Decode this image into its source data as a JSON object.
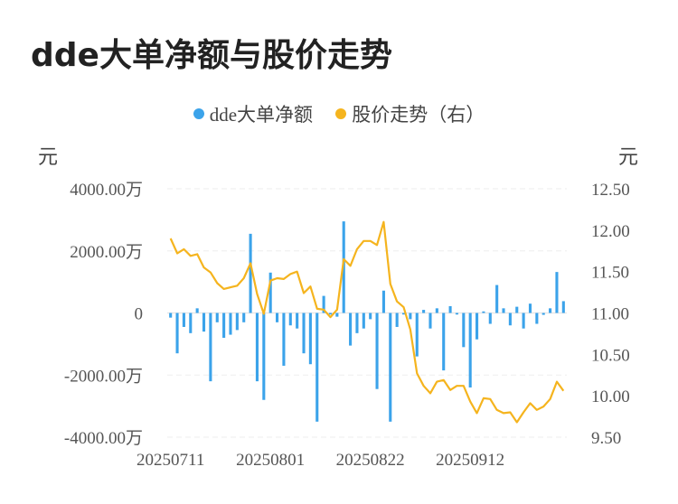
{
  "title": "dde大单净额与股价走势",
  "legend": [
    {
      "name": "dde大单净额",
      "color": "#3ba3ea"
    },
    {
      "name": "股价走势（右）",
      "color": "#f5b41e"
    }
  ],
  "units": {
    "left": "元",
    "right": "元"
  },
  "chart_data": {
    "type": "bar+line",
    "title": "dde大单净额与股价走势",
    "y_left": {
      "unit": "元",
      "range": [
        -4000,
        4000
      ],
      "ticks": [
        "4000.00万",
        "2000.00万",
        "0",
        "-2000.00万",
        "-4000.00万"
      ],
      "tick_values": [
        4000,
        2000,
        0,
        -2000,
        -4000
      ]
    },
    "y_right": {
      "unit": "元",
      "range": [
        9.5,
        12.5
      ],
      "ticks": [
        "12.50",
        "12.00",
        "11.50",
        "11.00",
        "10.50",
        "10.00",
        "9.50"
      ],
      "tick_values": [
        12.5,
        12.0,
        11.5,
        11.0,
        10.5,
        10.0,
        9.5
      ]
    },
    "x_ticks": [
      {
        "label": "20250711",
        "index": 0
      },
      {
        "label": "20250801",
        "index": 15
      },
      {
        "label": "20250822",
        "index": 30
      },
      {
        "label": "20250912",
        "index": 45
      }
    ],
    "grid": true,
    "legend_position": "top-center",
    "series": [
      {
        "name": "dde大单净额",
        "type": "bar",
        "axis": "left",
        "color": "#3ba3ea",
        "values": [
          -150,
          -1300,
          -450,
          -650,
          150,
          -600,
          -2200,
          -300,
          -800,
          -700,
          -550,
          -300,
          2550,
          -2200,
          -2800,
          1300,
          -300,
          -1700,
          -400,
          -500,
          -1300,
          -1650,
          -3500,
          550,
          -50,
          -120,
          2950,
          -1050,
          -650,
          -500,
          -200,
          -2450,
          720,
          -3500,
          -450,
          -50,
          -200,
          -1400,
          100,
          -500,
          150,
          -1850,
          220,
          -50,
          -1100,
          -2400,
          -850,
          50,
          -350,
          900,
          150,
          -400,
          200,
          -500,
          300,
          -350,
          -60,
          150,
          1320,
          380
        ]
      },
      {
        "name": "股价走势（右）",
        "type": "line",
        "axis": "right",
        "color": "#f5b41e",
        "values": [
          11.9,
          11.72,
          11.77,
          11.69,
          11.71,
          11.55,
          11.49,
          11.36,
          11.29,
          11.31,
          11.33,
          11.42,
          11.6,
          11.23,
          10.99,
          11.39,
          11.42,
          11.41,
          11.47,
          11.5,
          11.24,
          11.32,
          11.05,
          11.04,
          10.95,
          11.04,
          11.65,
          11.57,
          11.77,
          11.87,
          11.87,
          11.82,
          12.1,
          11.35,
          11.14,
          11.07,
          10.8,
          10.27,
          10.12,
          10.03,
          10.17,
          10.19,
          10.07,
          10.12,
          10.12,
          9.93,
          9.79,
          9.97,
          9.96,
          9.83,
          9.79,
          9.8,
          9.68,
          9.8,
          9.91,
          9.83,
          9.87,
          9.96,
          10.17,
          10.06
        ]
      }
    ]
  }
}
